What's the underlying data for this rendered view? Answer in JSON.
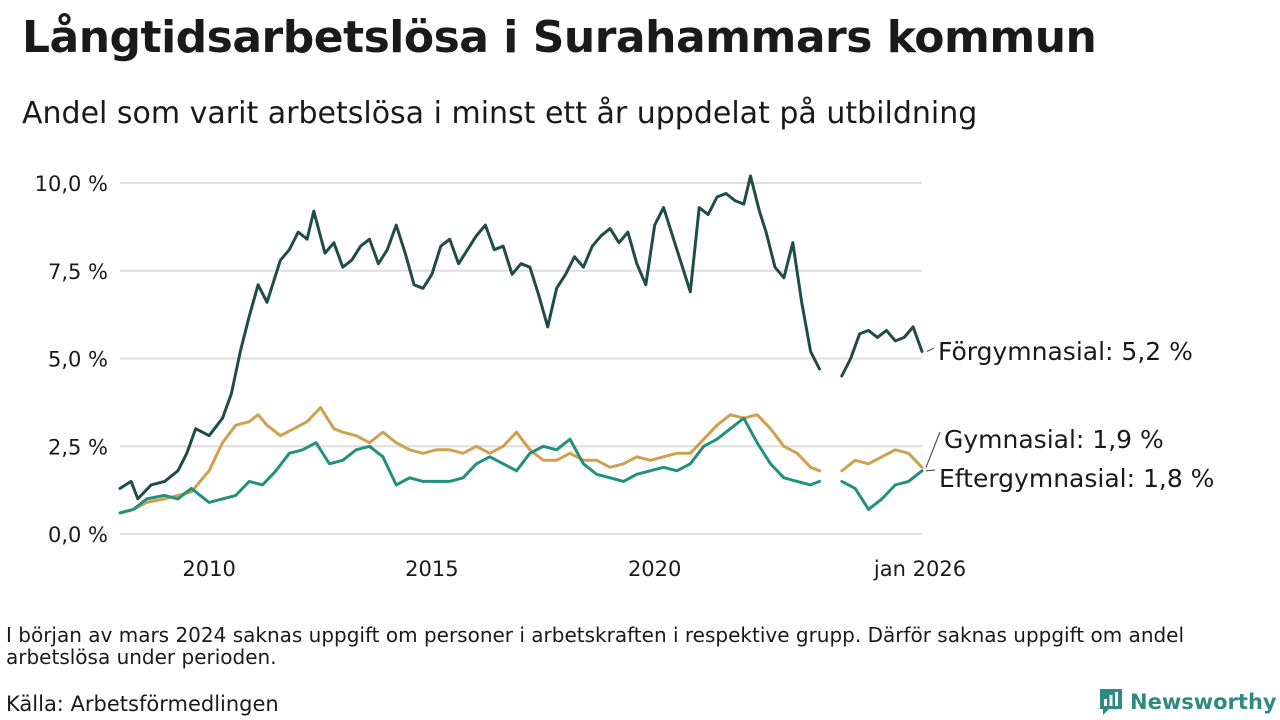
{
  "header": {
    "title": "Långtidsarbetslösa i Surahammars kommun",
    "subtitle": "Andel som varit arbetslösa i minst ett år uppdelat på utbildning"
  },
  "footer": {
    "note": "I början av mars 2024 saknas uppgift om personer i arbetskraften i respektive grupp. Därför saknas uppgift om andel arbetslösa under perioden.",
    "source": "Källa: Arbetsförmedlingen",
    "brand": "Newsworthy"
  },
  "colors": {
    "forgymnasial": "#1f4d45",
    "gymnasial": "#d1a04d",
    "eftergymnasial": "#20917f",
    "grid": "#dedede",
    "brand": "#2e8a82"
  },
  "chart_data": {
    "type": "line",
    "title": "Långtidsarbetslösa i Surahammars kommun",
    "xlabel": "",
    "ylabel": "",
    "ylim": [
      0,
      10
    ],
    "xlim": [
      2008.0,
      2026.0
    ],
    "yticks": [
      {
        "value": 0,
        "label": "0,0 %"
      },
      {
        "value": 2.5,
        "label": "2,5 %"
      },
      {
        "value": 5,
        "label": "5,0 %"
      },
      {
        "value": 7.5,
        "label": "7,5 %"
      },
      {
        "value": 10,
        "label": "10,0 %"
      }
    ],
    "xticks": [
      {
        "value": 2010,
        "label": "2010"
      },
      {
        "value": 2015,
        "label": "2015"
      },
      {
        "value": 2020,
        "label": "2020"
      },
      {
        "value": 2026,
        "label": "jan 2026"
      }
    ],
    "series": [
      {
        "name": "Förgymnasial",
        "end_label": "Förgymnasial: 5,2 %",
        "color": "#1f4d45",
        "points": [
          [
            2008.0,
            1.3
          ],
          [
            2008.25,
            1.5
          ],
          [
            2008.4,
            1.0
          ],
          [
            2008.7,
            1.4
          ],
          [
            2009.0,
            1.5
          ],
          [
            2009.3,
            1.8
          ],
          [
            2009.5,
            2.3
          ],
          [
            2009.7,
            3.0
          ],
          [
            2010.0,
            2.8
          ],
          [
            2010.3,
            3.3
          ],
          [
            2010.5,
            4.0
          ],
          [
            2010.7,
            5.2
          ],
          [
            2010.9,
            6.2
          ],
          [
            2011.1,
            7.1
          ],
          [
            2011.3,
            6.6
          ],
          [
            2011.6,
            7.8
          ],
          [
            2011.8,
            8.1
          ],
          [
            2012.0,
            8.6
          ],
          [
            2012.2,
            8.4
          ],
          [
            2012.35,
            9.2
          ],
          [
            2012.6,
            8.0
          ],
          [
            2012.8,
            8.3
          ],
          [
            2013.0,
            7.6
          ],
          [
            2013.2,
            7.8
          ],
          [
            2013.4,
            8.2
          ],
          [
            2013.6,
            8.4
          ],
          [
            2013.8,
            7.7
          ],
          [
            2014.0,
            8.1
          ],
          [
            2014.2,
            8.8
          ],
          [
            2014.4,
            8.0
          ],
          [
            2014.6,
            7.1
          ],
          [
            2014.8,
            7.0
          ],
          [
            2015.0,
            7.4
          ],
          [
            2015.2,
            8.2
          ],
          [
            2015.4,
            8.4
          ],
          [
            2015.6,
            7.7
          ],
          [
            2015.8,
            8.1
          ],
          [
            2016.0,
            8.5
          ],
          [
            2016.2,
            8.8
          ],
          [
            2016.4,
            8.1
          ],
          [
            2016.6,
            8.2
          ],
          [
            2016.8,
            7.4
          ],
          [
            2017.0,
            7.7
          ],
          [
            2017.2,
            7.6
          ],
          [
            2017.4,
            6.8
          ],
          [
            2017.6,
            5.9
          ],
          [
            2017.8,
            7.0
          ],
          [
            2018.0,
            7.4
          ],
          [
            2018.2,
            7.9
          ],
          [
            2018.4,
            7.6
          ],
          [
            2018.6,
            8.2
          ],
          [
            2018.8,
            8.5
          ],
          [
            2019.0,
            8.7
          ],
          [
            2019.2,
            8.3
          ],
          [
            2019.4,
            8.6
          ],
          [
            2019.6,
            7.7
          ],
          [
            2019.8,
            7.1
          ],
          [
            2020.0,
            8.8
          ],
          [
            2020.2,
            9.3
          ],
          [
            2020.4,
            8.5
          ],
          [
            2020.6,
            7.7
          ],
          [
            2020.8,
            6.9
          ],
          [
            2021.0,
            9.3
          ],
          [
            2021.2,
            9.1
          ],
          [
            2021.4,
            9.6
          ],
          [
            2021.6,
            9.7
          ],
          [
            2021.8,
            9.5
          ],
          [
            2022.0,
            9.4
          ],
          [
            2022.15,
            10.2
          ],
          [
            2022.35,
            9.2
          ],
          [
            2022.5,
            8.6
          ],
          [
            2022.7,
            7.6
          ],
          [
            2022.9,
            7.3
          ],
          [
            2023.1,
            8.3
          ],
          [
            2023.3,
            6.6
          ],
          [
            2023.5,
            5.2
          ],
          [
            2023.7,
            4.7
          ]
        ]
      },
      {
        "name": "Förgymnasial (efter uppehåll)",
        "color": "#1f4d45",
        "points": [
          [
            2024.2,
            4.5
          ],
          [
            2024.4,
            5.0
          ],
          [
            2024.6,
            5.7
          ],
          [
            2024.8,
            5.8
          ],
          [
            2025.0,
            5.6
          ],
          [
            2025.2,
            5.8
          ],
          [
            2025.4,
            5.5
          ],
          [
            2025.6,
            5.6
          ],
          [
            2025.8,
            5.9
          ],
          [
            2026.0,
            5.2
          ]
        ]
      },
      {
        "name": "Gymnasial",
        "end_label": "Gymnasial: 1,9 %",
        "color": "#d1a04d",
        "points": [
          [
            2008.0,
            0.6
          ],
          [
            2008.3,
            0.7
          ],
          [
            2008.6,
            0.9
          ],
          [
            2009.0,
            1.0
          ],
          [
            2009.3,
            1.1
          ],
          [
            2009.6,
            1.2
          ],
          [
            2010.0,
            1.8
          ],
          [
            2010.3,
            2.6
          ],
          [
            2010.6,
            3.1
          ],
          [
            2010.9,
            3.2
          ],
          [
            2011.1,
            3.4
          ],
          [
            2011.3,
            3.1
          ],
          [
            2011.6,
            2.8
          ],
          [
            2011.9,
            3.0
          ],
          [
            2012.2,
            3.2
          ],
          [
            2012.5,
            3.6
          ],
          [
            2012.8,
            3.0
          ],
          [
            2013.0,
            2.9
          ],
          [
            2013.3,
            2.8
          ],
          [
            2013.6,
            2.6
          ],
          [
            2013.9,
            2.9
          ],
          [
            2014.2,
            2.6
          ],
          [
            2014.5,
            2.4
          ],
          [
            2014.8,
            2.3
          ],
          [
            2015.1,
            2.4
          ],
          [
            2015.4,
            2.4
          ],
          [
            2015.7,
            2.3
          ],
          [
            2016.0,
            2.5
          ],
          [
            2016.3,
            2.3
          ],
          [
            2016.6,
            2.5
          ],
          [
            2016.9,
            2.9
          ],
          [
            2017.2,
            2.4
          ],
          [
            2017.5,
            2.1
          ],
          [
            2017.8,
            2.1
          ],
          [
            2018.1,
            2.3
          ],
          [
            2018.4,
            2.1
          ],
          [
            2018.7,
            2.1
          ],
          [
            2019.0,
            1.9
          ],
          [
            2019.3,
            2.0
          ],
          [
            2019.6,
            2.2
          ],
          [
            2019.9,
            2.1
          ],
          [
            2020.2,
            2.2
          ],
          [
            2020.5,
            2.3
          ],
          [
            2020.8,
            2.3
          ],
          [
            2021.1,
            2.7
          ],
          [
            2021.4,
            3.1
          ],
          [
            2021.7,
            3.4
          ],
          [
            2022.0,
            3.3
          ],
          [
            2022.3,
            3.4
          ],
          [
            2022.6,
            3.0
          ],
          [
            2022.9,
            2.5
          ],
          [
            2023.2,
            2.3
          ],
          [
            2023.5,
            1.9
          ],
          [
            2023.7,
            1.8
          ]
        ]
      },
      {
        "name": "Gymnasial (efter uppehåll)",
        "color": "#d1a04d",
        "points": [
          [
            2024.2,
            1.8
          ],
          [
            2024.5,
            2.1
          ],
          [
            2024.8,
            2.0
          ],
          [
            2025.1,
            2.2
          ],
          [
            2025.4,
            2.4
          ],
          [
            2025.7,
            2.3
          ],
          [
            2026.0,
            1.9
          ]
        ]
      },
      {
        "name": "Eftergymnasial",
        "end_label": "Eftergymnasial: 1,8 %",
        "color": "#20917f",
        "points": [
          [
            2008.0,
            0.6
          ],
          [
            2008.3,
            0.7
          ],
          [
            2008.6,
            1.0
          ],
          [
            2009.0,
            1.1
          ],
          [
            2009.3,
            1.0
          ],
          [
            2009.6,
            1.3
          ],
          [
            2010.0,
            0.9
          ],
          [
            2010.3,
            1.0
          ],
          [
            2010.6,
            1.1
          ],
          [
            2010.9,
            1.5
          ],
          [
            2011.2,
            1.4
          ],
          [
            2011.5,
            1.8
          ],
          [
            2011.8,
            2.3
          ],
          [
            2012.1,
            2.4
          ],
          [
            2012.4,
            2.6
          ],
          [
            2012.7,
            2.0
          ],
          [
            2013.0,
            2.1
          ],
          [
            2013.3,
            2.4
          ],
          [
            2013.6,
            2.5
          ],
          [
            2013.9,
            2.2
          ],
          [
            2014.2,
            1.4
          ],
          [
            2014.5,
            1.6
          ],
          [
            2014.8,
            1.5
          ],
          [
            2015.1,
            1.5
          ],
          [
            2015.4,
            1.5
          ],
          [
            2015.7,
            1.6
          ],
          [
            2016.0,
            2.0
          ],
          [
            2016.3,
            2.2
          ],
          [
            2016.6,
            2.0
          ],
          [
            2016.9,
            1.8
          ],
          [
            2017.2,
            2.3
          ],
          [
            2017.5,
            2.5
          ],
          [
            2017.8,
            2.4
          ],
          [
            2018.1,
            2.7
          ],
          [
            2018.4,
            2.0
          ],
          [
            2018.7,
            1.7
          ],
          [
            2019.0,
            1.6
          ],
          [
            2019.3,
            1.5
          ],
          [
            2019.6,
            1.7
          ],
          [
            2019.9,
            1.8
          ],
          [
            2020.2,
            1.9
          ],
          [
            2020.5,
            1.8
          ],
          [
            2020.8,
            2.0
          ],
          [
            2021.1,
            2.5
          ],
          [
            2021.4,
            2.7
          ],
          [
            2021.7,
            3.0
          ],
          [
            2022.0,
            3.3
          ],
          [
            2022.3,
            2.6
          ],
          [
            2022.6,
            2.0
          ],
          [
            2022.9,
            1.6
          ],
          [
            2023.2,
            1.5
          ],
          [
            2023.5,
            1.4
          ],
          [
            2023.7,
            1.5
          ]
        ]
      },
      {
        "name": "Eftergymnasial (efter uppehåll)",
        "color": "#20917f",
        "points": [
          [
            2024.2,
            1.5
          ],
          [
            2024.5,
            1.3
          ],
          [
            2024.8,
            0.7
          ],
          [
            2025.1,
            1.0
          ],
          [
            2025.4,
            1.4
          ],
          [
            2025.7,
            1.5
          ],
          [
            2026.0,
            1.8
          ]
        ]
      }
    ],
    "annotations": [
      {
        "series": "Förgymnasial",
        "text": "Förgymnasial: 5,2 %"
      },
      {
        "series": "Gymnasial",
        "text": "Gymnasial: 1,9 %"
      },
      {
        "series": "Eftergymnasial",
        "text": "Eftergymnasial: 1,8 %"
      }
    ]
  }
}
